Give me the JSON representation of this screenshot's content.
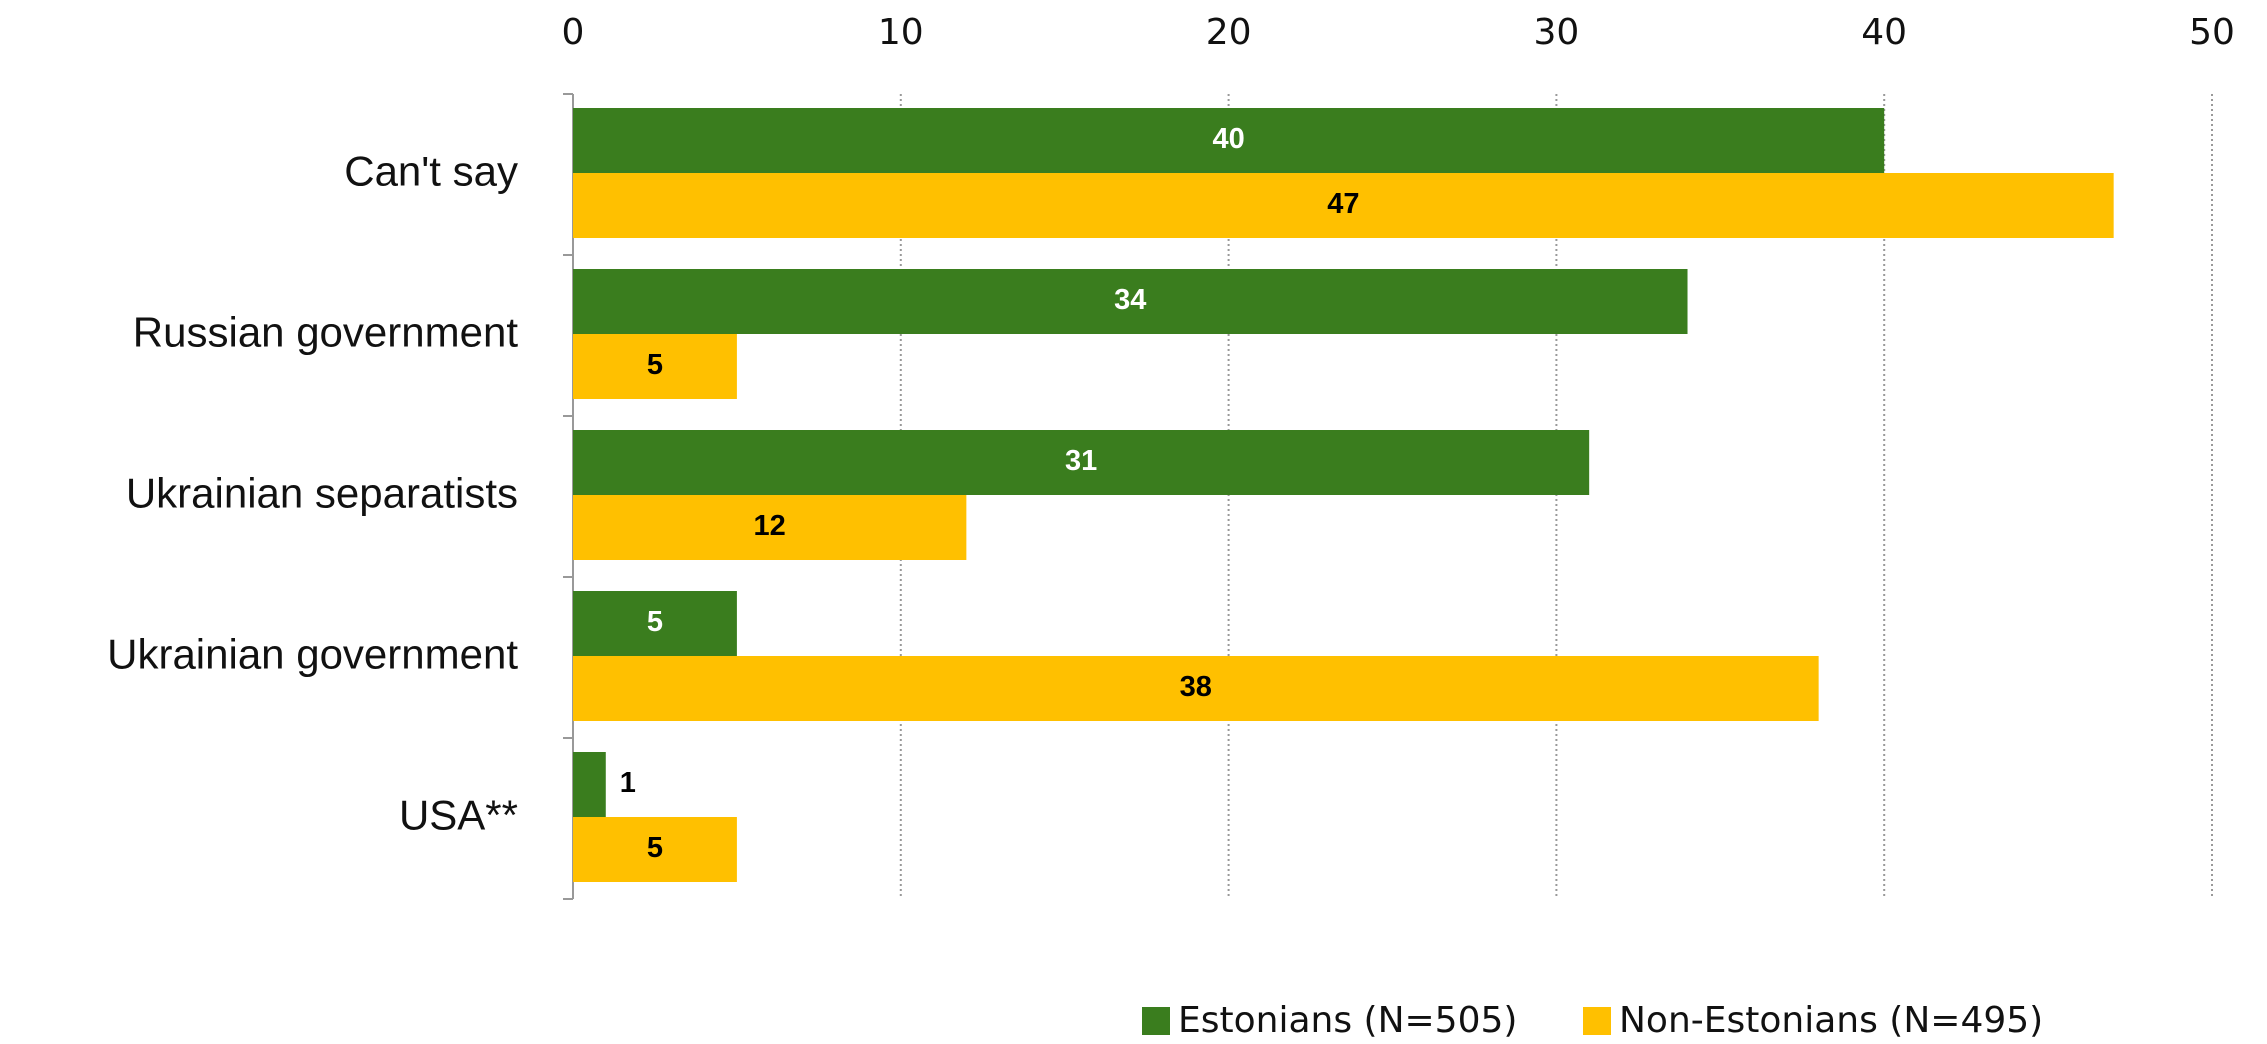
{
  "chart_data": {
    "type": "hbar",
    "categories": [
      "Can't say",
      "Russian government",
      "Ukrainian separatists",
      "Ukrainian government",
      "USA**"
    ],
    "series": [
      {
        "name": "Estonians (N=505)",
        "color": "#3a7d1e",
        "values": [
          40,
          34,
          31,
          5,
          1
        ]
      },
      {
        "name": "Non-Estonians (N=495)",
        "color": "#ffc000",
        "values": [
          47,
          5,
          12,
          38,
          5
        ]
      }
    ],
    "xlim": [
      0,
      50
    ],
    "xticks": [
      0,
      10,
      20,
      30,
      40,
      50
    ],
    "grid": true,
    "legend": "bottom"
  }
}
